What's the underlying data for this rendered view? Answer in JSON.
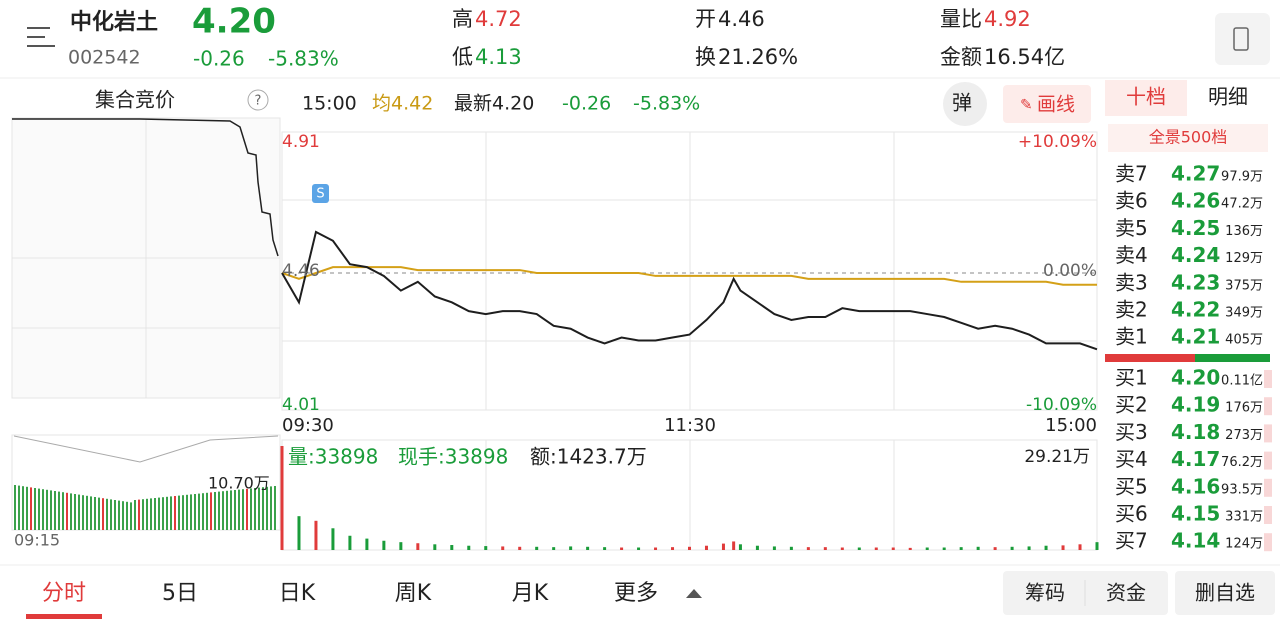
{
  "header": {
    "name": "中化岩土",
    "price": "4.20",
    "code": "002542",
    "change": "-0.26",
    "change_pct": "-5.83%",
    "stats": [
      {
        "label": "高",
        "value": "4.72"
      },
      {
        "label": "低",
        "value": "4.13"
      },
      {
        "label": "开",
        "value": "4.46"
      },
      {
        "label": "换",
        "value": "21.26%"
      },
      {
        "label": "量比",
        "value": "4.92"
      },
      {
        "label": "金额",
        "value": "16.54亿"
      }
    ]
  },
  "info_bar": {
    "auction": "集合竞价",
    "time": "15:00",
    "avg": "均4.42",
    "latest": "最新4.20",
    "change": "-0.26",
    "change_pct": "-5.83%",
    "popup": "弹",
    "draw": "画线"
  },
  "price_chart": {
    "top": 4.91,
    "mid": 4.46,
    "bottom": 4.01,
    "top_pct": "+10.09%",
    "mid_pct": "0.00%",
    "bottom_pct": "-10.09%",
    "times": [
      "09:30",
      "11:30",
      "15:00"
    ],
    "marker": "S",
    "xlim": [
      0,
      240
    ],
    "x": [
      0,
      5,
      10,
      15,
      20,
      25,
      30,
      35,
      40,
      45,
      50,
      55,
      60,
      65,
      70,
      75,
      80,
      85,
      90,
      95,
      100,
      105,
      110,
      115,
      120,
      125,
      130,
      133,
      135,
      140,
      145,
      150,
      155,
      160,
      165,
      170,
      175,
      180,
      185,
      190,
      195,
      200,
      205,
      210,
      215,
      220,
      225,
      230,
      235,
      240
    ],
    "price": [
      4.46,
      4.36,
      4.6,
      4.57,
      4.49,
      4.48,
      4.45,
      4.4,
      4.43,
      4.38,
      4.36,
      4.33,
      4.32,
      4.33,
      4.33,
      4.32,
      4.28,
      4.27,
      4.24,
      4.22,
      4.24,
      4.23,
      4.23,
      4.24,
      4.25,
      4.3,
      4.36,
      4.44,
      4.4,
      4.36,
      4.32,
      4.3,
      4.31,
      4.31,
      4.34,
      4.33,
      4.33,
      4.33,
      4.33,
      4.32,
      4.31,
      4.29,
      4.27,
      4.28,
      4.27,
      4.25,
      4.22,
      4.22,
      4.22,
      4.2
    ],
    "avg": [
      4.46,
      4.44,
      4.46,
      4.48,
      4.48,
      4.48,
      4.48,
      4.48,
      4.47,
      4.47,
      4.47,
      4.47,
      4.47,
      4.47,
      4.47,
      4.46,
      4.46,
      4.46,
      4.46,
      4.46,
      4.46,
      4.46,
      4.45,
      4.45,
      4.45,
      4.45,
      4.45,
      4.45,
      4.45,
      4.45,
      4.45,
      4.45,
      4.44,
      4.44,
      4.44,
      4.44,
      4.44,
      4.44,
      4.44,
      4.44,
      4.44,
      4.43,
      4.43,
      4.43,
      4.43,
      4.43,
      4.43,
      4.42,
      4.42,
      4.42
    ]
  },
  "volume_chart": {
    "volume": "量:33898",
    "current": "现手:33898",
    "amount": "额:1423.7万",
    "max_label": "29.21万",
    "auction_label": "10.70万",
    "auction_time": "09:15",
    "ylim": [
      0,
      29.21
    ],
    "values": [
      29.21,
      9.5,
      8.2,
      6.1,
      4.0,
      3.2,
      2.6,
      2.2,
      1.9,
      1.6,
      1.4,
      1.2,
      1.1,
      1.0,
      0.9,
      0.9,
      0.8,
      1.0,
      0.9,
      0.8,
      0.7,
      0.7,
      0.7,
      0.8,
      0.9,
      1.2,
      1.8,
      2.4,
      1.6,
      1.2,
      1.0,
      0.9,
      0.8,
      0.8,
      0.7,
      0.7,
      0.7,
      0.7,
      0.6,
      0.7,
      0.7,
      0.8,
      0.9,
      0.8,
      0.9,
      1.0,
      1.2,
      1.3,
      1.6,
      2.2
    ]
  },
  "order_book": {
    "tabs": [
      "十档",
      "明细"
    ],
    "depth": "全景500档",
    "sell": [
      {
        "label": "卖7",
        "price": "4.27",
        "volume": "97.9万"
      },
      {
        "label": "卖6",
        "price": "4.26",
        "volume": "47.2万"
      },
      {
        "label": "卖5",
        "price": "4.25",
        "volume": "136万"
      },
      {
        "label": "卖4",
        "price": "4.24",
        "volume": "129万"
      },
      {
        "label": "卖3",
        "price": "4.23",
        "volume": "375万"
      },
      {
        "label": "卖2",
        "price": "4.22",
        "volume": "349万"
      },
      {
        "label": "卖1",
        "price": "4.21",
        "volume": "405万"
      }
    ],
    "buy": [
      {
        "label": "买1",
        "price": "4.20",
        "volume": "0.11亿"
      },
      {
        "label": "买2",
        "price": "4.19",
        "volume": "176万"
      },
      {
        "label": "买3",
        "price": "4.18",
        "volume": "273万"
      },
      {
        "label": "买4",
        "price": "4.17",
        "volume": "76.2万"
      },
      {
        "label": "买5",
        "price": "4.16",
        "volume": "93.5万"
      },
      {
        "label": "买6",
        "price": "4.15",
        "volume": "331万"
      },
      {
        "label": "买7",
        "price": "4.14",
        "volume": "124万"
      }
    ]
  },
  "bottom_bar": {
    "tabs": [
      "分时",
      "5日",
      "日K",
      "周K",
      "月K",
      "更多"
    ],
    "buttons": [
      "筹码",
      "资金",
      "删自选"
    ]
  }
}
